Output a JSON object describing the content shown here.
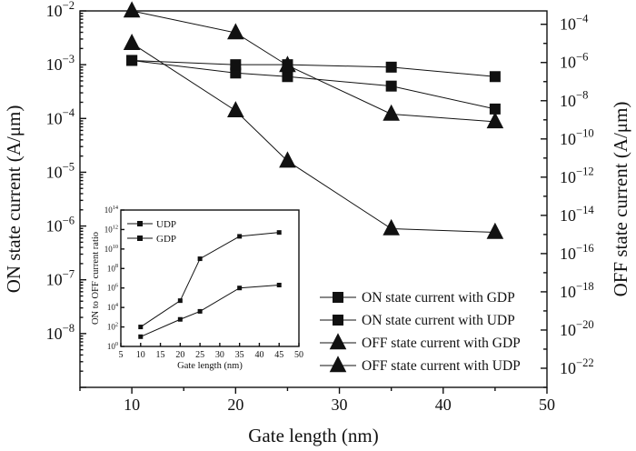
{
  "chart_data": [
    {
      "type": "line",
      "x_axis": {
        "label": "Gate length (nm)",
        "min": 5,
        "max": 50,
        "ticks": [
          10,
          20,
          30,
          40,
          50
        ]
      },
      "y_left": {
        "label": "ON state current (A/μm)",
        "scale": "log",
        "min_exp": -9,
        "max_exp": -2,
        "tick_labels": [
          {
            "exp": -2,
            "base": "10",
            "sup": "−2"
          },
          {
            "exp": -3,
            "base": "10",
            "sup": "−3"
          },
          {
            "exp": -4,
            "base": "10",
            "sup": "−4"
          },
          {
            "exp": -5,
            "base": "10",
            "sup": "−5"
          },
          {
            "exp": -6,
            "base": "10",
            "sup": "−6"
          },
          {
            "exp": -7,
            "base": "10",
            "sup": "−7"
          },
          {
            "exp": -8,
            "base": "10",
            "sup": "−8"
          }
        ]
      },
      "y_right": {
        "label": "OFF state current (A/μm)",
        "scale": "log",
        "min_exp": -23,
        "max_exp": -3.3,
        "tick_labels": [
          {
            "exp": -4,
            "base": "10",
            "sup": "−4"
          },
          {
            "exp": -6,
            "base": "10",
            "sup": "−6"
          },
          {
            "exp": -8,
            "base": "10",
            "sup": "−8"
          },
          {
            "exp": -10,
            "base": "10",
            "sup": "−10"
          },
          {
            "exp": -12,
            "base": "10",
            "sup": "−12"
          },
          {
            "exp": -14,
            "base": "10",
            "sup": "−14"
          },
          {
            "exp": -16,
            "base": "10",
            "sup": "−16"
          },
          {
            "exp": -18,
            "base": "10",
            "sup": "−18"
          },
          {
            "exp": -20,
            "base": "10",
            "sup": "−20"
          },
          {
            "exp": -22,
            "base": "10",
            "sup": "−22"
          }
        ]
      },
      "series": [
        {
          "name": "ON state current with GDP",
          "axis": "left",
          "marker": "square",
          "x": [
            10,
            20,
            25,
            35,
            45
          ],
          "y": [
            0.0012,
            0.0007,
            0.0006,
            0.0004,
            0.00015
          ]
        },
        {
          "name": "ON state current with UDP",
          "axis": "left",
          "marker": "square",
          "x": [
            10,
            20,
            25,
            35,
            45
          ],
          "y": [
            0.0012,
            0.001,
            0.001,
            0.0009,
            0.0006
          ]
        },
        {
          "name": "OFF state current with GDP",
          "axis": "right",
          "marker": "triangle",
          "x": [
            10,
            20,
            25,
            35,
            45
          ],
          "y": [
            1e-05,
            3e-09,
            7e-12,
            2e-15,
            1.3e-15
          ]
        },
        {
          "name": "OFF state current with UDP",
          "axis": "right",
          "marker": "triangle",
          "x": [
            10,
            20,
            25,
            35,
            45
          ],
          "y": [
            0.0005,
            3.6e-05,
            7e-07,
            2e-09,
            8e-10
          ]
        }
      ],
      "legend": {
        "placement": "bottom-right"
      }
    },
    {
      "type": "line",
      "inset": true,
      "x_axis": {
        "label": "Gate length (nm)",
        "min": 5,
        "max": 50,
        "ticks": [
          5,
          10,
          15,
          20,
          25,
          30,
          35,
          40,
          45,
          50
        ]
      },
      "y_axis": {
        "label": "ON to OFF current ratio",
        "scale": "log",
        "min_exp": 0,
        "max_exp": 14,
        "tick_labels": [
          {
            "exp": 0,
            "base": "10",
            "sup": "0"
          },
          {
            "exp": 2,
            "base": "10",
            "sup": "2"
          },
          {
            "exp": 4,
            "base": "10",
            "sup": "4"
          },
          {
            "exp": 6,
            "base": "10",
            "sup": "6"
          },
          {
            "exp": 8,
            "base": "10",
            "sup": "8"
          },
          {
            "exp": 10,
            "base": "10",
            "sup": "10"
          },
          {
            "exp": 12,
            "base": "10",
            "sup": "12"
          },
          {
            "exp": 14,
            "base": "10",
            "sup": "14"
          }
        ]
      },
      "series": [
        {
          "name": "UDP",
          "marker": "square",
          "x": [
            10,
            20,
            25,
            35,
            45
          ],
          "y": [
            10.0,
            600.0,
            4000.0,
            1000000.0,
            2000000.0
          ]
        },
        {
          "name": "GDP",
          "marker": "square",
          "x": [
            10,
            20,
            25,
            35,
            45
          ],
          "y": [
            100.0,
            50000.0,
            1000000000.0,
            200000000000.0,
            500000000000.0
          ]
        }
      ],
      "legend": {
        "placement": "top-left"
      }
    }
  ]
}
